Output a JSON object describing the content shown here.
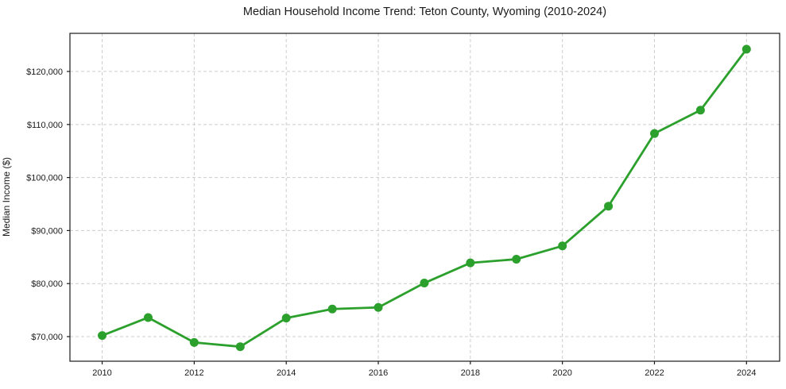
{
  "chart_data": {
    "type": "line",
    "title": "Median Household Income Trend: Teton County, Wyoming (2010-2024)",
    "xlabel": "",
    "ylabel": "Median Income ($)",
    "series": [
      {
        "name": "Median Household Income",
        "x": [
          2010,
          2011,
          2012,
          2013,
          2014,
          2015,
          2016,
          2017,
          2018,
          2019,
          2020,
          2021,
          2022,
          2023,
          2024
        ],
        "values": [
          70200,
          73600,
          68900,
          68100,
          73500,
          75200,
          75500,
          80100,
          83900,
          84600,
          87100,
          94600,
          108300,
          112700,
          124200
        ]
      }
    ],
    "x_ticks": {
      "values": [
        2010,
        2012,
        2014,
        2016,
        2018,
        2020,
        2022,
        2024
      ],
      "labels": [
        "2010",
        "2012",
        "2014",
        "2016",
        "2018",
        "2020",
        "2022",
        "2024"
      ]
    },
    "y_ticks": {
      "values": [
        70000,
        80000,
        90000,
        100000,
        110000,
        120000
      ],
      "labels": [
        "$70,000",
        "$80,000",
        "$90,000",
        "$100,000",
        "$110,000",
        "$120,000"
      ]
    },
    "x_range": [
      2009.3,
      2024.72
    ],
    "y_range": [
      65360,
      127190
    ],
    "grid": true,
    "grid_style": "dashed",
    "legend_position": "none",
    "colors": {
      "line": "#2ca02c",
      "marker": "#2ca02c",
      "grid": "#cccccc",
      "spine": "#1a1a1a",
      "text": "#1a1a1a",
      "background": "#ffffff"
    }
  }
}
